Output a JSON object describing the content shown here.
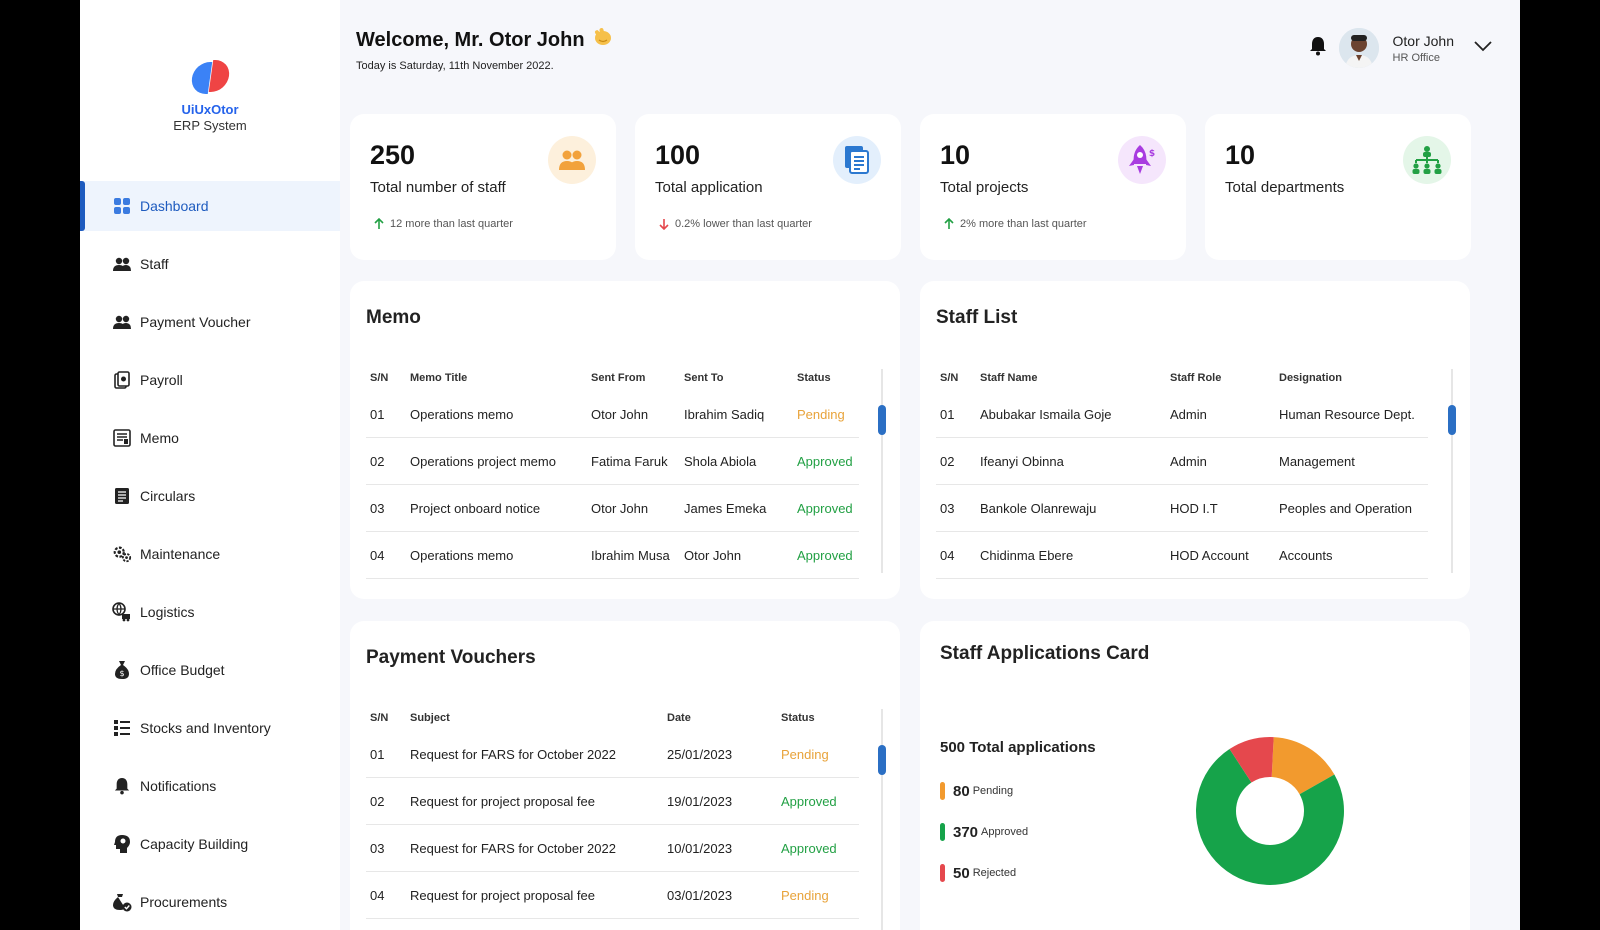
{
  "brand": {
    "name": "UiUxOtor",
    "subtitle": "ERP System"
  },
  "sidebar": {
    "items": [
      {
        "label": "Dashboard",
        "icon": "dashboard-grid-icon",
        "active": true
      },
      {
        "label": "Staff",
        "icon": "users-icon"
      },
      {
        "label": "Payment Voucher",
        "icon": "users-icon"
      },
      {
        "label": "Payroll",
        "icon": "payroll-icon"
      },
      {
        "label": "Memo",
        "icon": "memo-icon"
      },
      {
        "label": "Circulars",
        "icon": "document-icon"
      },
      {
        "label": "Maintenance",
        "icon": "gears-icon"
      },
      {
        "label": "Logistics",
        "icon": "logistics-icon"
      },
      {
        "label": "Office Budget",
        "icon": "money-bag-icon"
      },
      {
        "label": "Stocks and Inventory",
        "icon": "list-icon"
      },
      {
        "label": "Notifications",
        "icon": "bell-icon"
      },
      {
        "label": "Capacity Building",
        "icon": "head-icon"
      },
      {
        "label": "Procurements",
        "icon": "bag-check-icon"
      }
    ]
  },
  "header": {
    "welcome": "Welcome, Mr. Otor John",
    "date": "Today is Saturday, 11th November 2022.",
    "user_name": "Otor John",
    "user_role": "HR Office"
  },
  "stats": [
    {
      "value": "250",
      "label": "Total number of staff",
      "trend": "12 more than last quarter",
      "direction": "up",
      "icon": "staff-group-icon",
      "color": "#f2a23c",
      "bg": "#fdf0dc"
    },
    {
      "value": "100",
      "label": "Total application",
      "trend": "0.2% lower than last quarter",
      "direction": "down",
      "icon": "documents-icon",
      "color": "#2b78d0",
      "bg": "#e3effc"
    },
    {
      "value": "10",
      "label": "Total projects",
      "trend": "2% more than last quarter",
      "direction": "up",
      "icon": "rocket-icon",
      "color": "#a83ce0",
      "bg": "#f5e6fc"
    },
    {
      "value": "10",
      "label": "Total departments",
      "trend": "",
      "direction": "",
      "icon": "org-chart-icon",
      "color": "#22a044",
      "bg": "#e4f6e8"
    }
  ],
  "memo": {
    "title": "Memo",
    "columns": [
      "S/N",
      "Memo Title",
      "Sent From",
      "Sent To",
      "Status"
    ],
    "rows": [
      [
        "01",
        "Operations memo",
        "Otor John",
        "Ibrahim Sadiq",
        "Pending"
      ],
      [
        "02",
        "Operations project memo",
        "Fatima Faruk",
        "Shola Abiola",
        "Approved"
      ],
      [
        "03",
        "Project onboard notice",
        "Otor John",
        "James Emeka",
        "Approved"
      ],
      [
        "04",
        "Operations memo",
        "Ibrahim Musa",
        "Otor John",
        "Approved"
      ]
    ]
  },
  "staff_list": {
    "title": "Staff List",
    "columns": [
      "S/N",
      "Staff Name",
      "Staff Role",
      "Designation"
    ],
    "rows": [
      [
        "01",
        "Abubakar Ismaila Goje",
        "Admin",
        "Human Resource Dept."
      ],
      [
        "02",
        "Ifeanyi Obinna",
        "Admin",
        "Management"
      ],
      [
        "03",
        "Bankole Olanrewaju",
        "HOD I.T",
        "Peoples and Operation"
      ],
      [
        "04",
        "Chidinma Ebere",
        "HOD Account",
        "Accounts"
      ]
    ]
  },
  "vouchers": {
    "title": "Payment Vouchers",
    "columns": [
      "S/N",
      "Subject",
      "Date",
      "Status"
    ],
    "rows": [
      [
        "01",
        "Request for FARS for October 2022",
        "25/01/2023",
        "Pending"
      ],
      [
        "02",
        "Request for project proposal fee",
        "19/01/2023",
        "Approved"
      ],
      [
        "03",
        "Request for FARS for October 2022",
        "10/01/2023",
        "Approved"
      ],
      [
        "04",
        "Request for project proposal fee",
        "03/01/2023",
        "Pending"
      ]
    ]
  },
  "applications": {
    "title": "Staff Applications Card",
    "total": "500 Total applications",
    "legend": [
      {
        "value": "80",
        "label": "Pending",
        "color": "#f29a2e"
      },
      {
        "value": "370",
        "label": "Approved",
        "color": "#16a34a"
      },
      {
        "value": "50",
        "label": "Rejected",
        "color": "#e5484d"
      }
    ]
  },
  "chart_data": {
    "type": "pie",
    "categories": [
      "Pending",
      "Approved",
      "Rejected"
    ],
    "values": [
      80,
      370,
      50
    ],
    "colors": [
      "#f29a2e",
      "#16a34a",
      "#e5484d"
    ],
    "title": "",
    "donut": true
  }
}
